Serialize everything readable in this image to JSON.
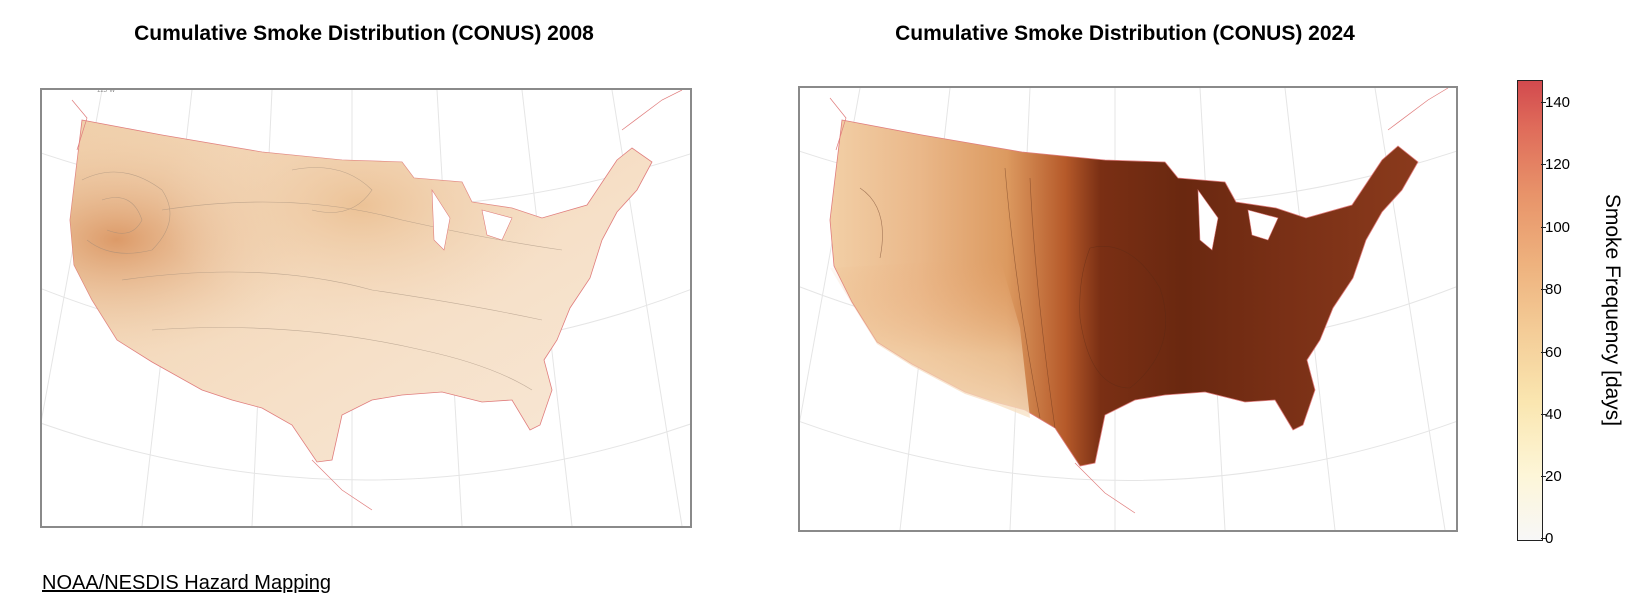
{
  "maps": [
    {
      "title": "Cumulative Smoke Distribution (CONUS) 2008",
      "dominant_color": "#f2d9bd",
      "hotspot_color": "#dfa070"
    },
    {
      "title": "Cumulative Smoke Distribution (CONUS) 2024",
      "west_color": "#efc89a",
      "east_color": "#6e2a12"
    }
  ],
  "colorbar": {
    "label": "Smoke Frequency [days]",
    "ticks": [
      "140",
      "120",
      "100",
      "80",
      "60",
      "40",
      "20",
      "0"
    ],
    "min": 0,
    "max": 147,
    "colors": [
      "#f7f7f7",
      "#fdf6d8",
      "#f4cd98",
      "#e8946a",
      "#d24a4e"
    ]
  },
  "source": {
    "text": "NOAA/NESDIS Hazard Mapping"
  }
}
